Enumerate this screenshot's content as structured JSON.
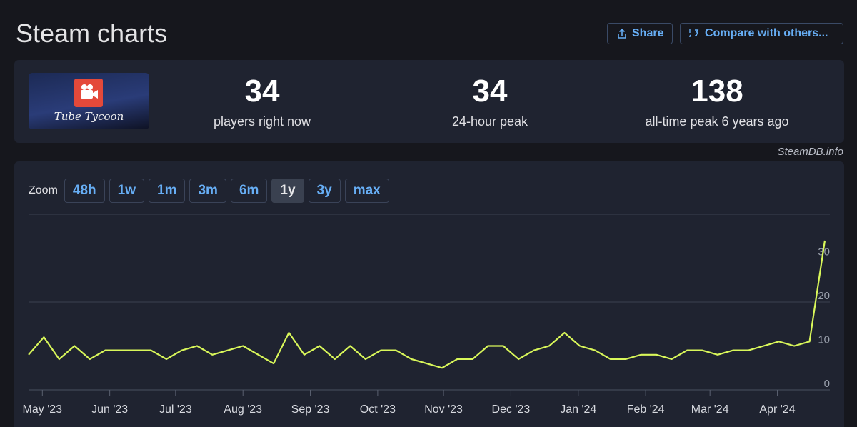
{
  "header": {
    "title": "Steam charts",
    "buttons": [
      "Share",
      "Compare with others..."
    ]
  },
  "game": {
    "image_text": "Tube Tycoon",
    "stats": [
      {
        "value": 34,
        "label": "players right now"
      },
      {
        "value": 34,
        "label": "24-hour peak"
      },
      {
        "value": 138,
        "label": "all-time peak 6 years ago"
      }
    ]
  },
  "credit": "SteamDB.info",
  "zoom": {
    "label": "Zoom",
    "options": [
      "48h",
      "1w",
      "1m",
      "3m",
      "6m",
      "1y",
      "3y",
      "max"
    ],
    "active_index": 5
  },
  "chart_data": {
    "type": "line",
    "color": "#d9f75a",
    "values": [
      8,
      12,
      7,
      10,
      7,
      9,
      9,
      9,
      9,
      7,
      9,
      10,
      8,
      9,
      10,
      8,
      6,
      13,
      8,
      10,
      7,
      10,
      7,
      9,
      9,
      7,
      6,
      5,
      7,
      7,
      10,
      10,
      7,
      9,
      10,
      13,
      10,
      9,
      7,
      7,
      8,
      8,
      7,
      9,
      9,
      8,
      9,
      9,
      10,
      11,
      10,
      11,
      34
    ],
    "xlim": [
      0,
      52
    ],
    "xticks": [
      {
        "value": 0.9,
        "label": "May '23"
      },
      {
        "value": 5.3,
        "label": "Jun '23"
      },
      {
        "value": 9.6,
        "label": "Jul '23"
      },
      {
        "value": 14.0,
        "label": "Aug '23"
      },
      {
        "value": 18.4,
        "label": "Sep '23"
      },
      {
        "value": 22.8,
        "label": "Oct '23"
      },
      {
        "value": 27.1,
        "label": "Nov '23"
      },
      {
        "value": 31.5,
        "label": "Dec '23"
      },
      {
        "value": 35.9,
        "label": "Jan '24"
      },
      {
        "value": 40.3,
        "label": "Feb '24"
      },
      {
        "value": 44.5,
        "label": "Mar '24"
      },
      {
        "value": 48.9,
        "label": "Apr '24"
      }
    ],
    "ylim": [
      0,
      40
    ],
    "yticks": [
      0,
      10,
      20,
      30
    ],
    "grid": true
  }
}
